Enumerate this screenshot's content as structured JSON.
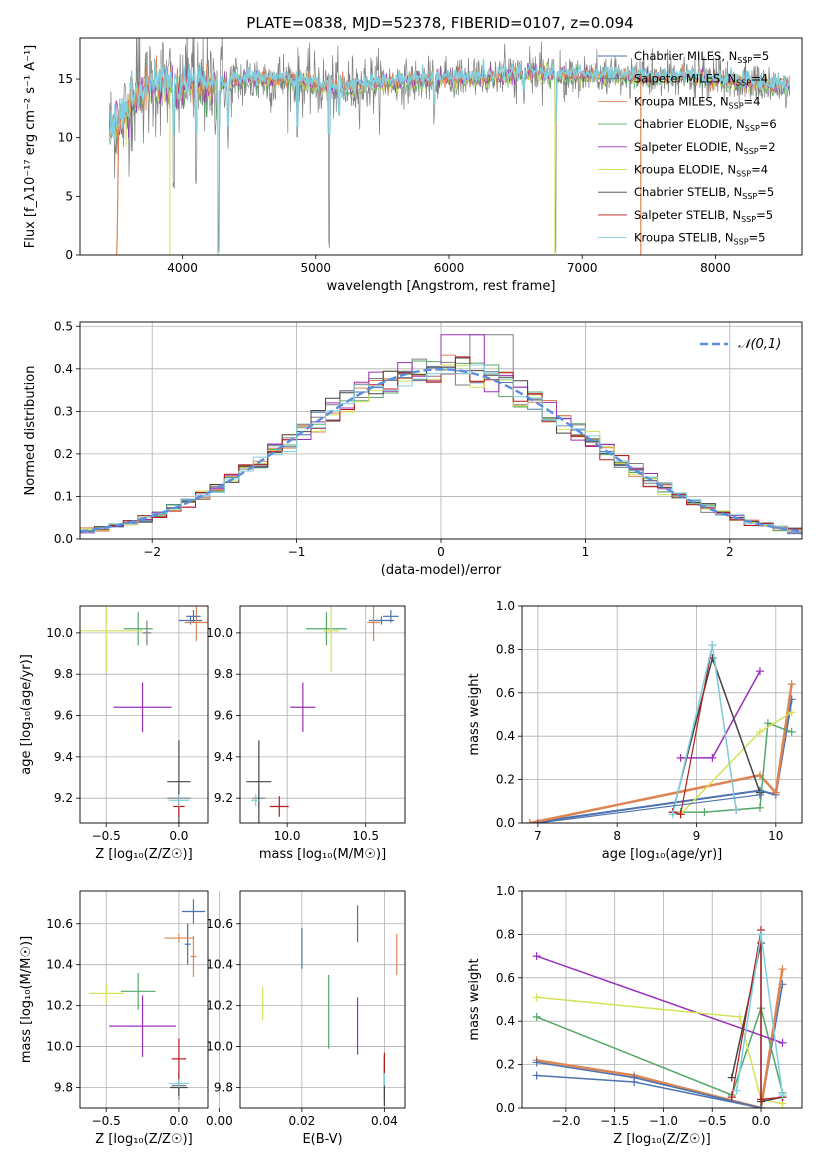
{
  "figure_title": "PLATE=0838, MJD=52378, FIBERID=0107, z=0.094",
  "model_colors": [
    "#4c72b0",
    "#7f7f7f",
    "#dd8452",
    "#55a868",
    "#9b30b8",
    "#d4e157",
    "#444444",
    "#b71c1c",
    "#80d0df"
  ],
  "chart_data": [
    {
      "id": "spectrum",
      "type": "line",
      "xlabel": "wavelength [Angstrom, rest frame]",
      "ylabel": "Flux [f_λ10⁻¹⁷ erg cm⁻² s⁻¹ A⁻¹]",
      "xlim": [
        3230,
        8650
      ],
      "ylim": [
        0,
        18.5
      ],
      "xticks": [
        4000,
        5000,
        6000,
        7000,
        8000
      ],
      "yticks": [
        0,
        5,
        10,
        15
      ],
      "grid": false,
      "legend_position": "right",
      "legend": [
        {
          "name": "Chabrier MILES, N",
          "sub": "SSP",
          "suffix": "=5"
        },
        {
          "name": "Salpeter MILES, N",
          "sub": "SSP",
          "suffix": "=4"
        },
        {
          "name": "Kroupa MILES, N",
          "sub": "SSP",
          "suffix": "=4"
        },
        {
          "name": "Chabrier ELODIE, N",
          "sub": "SSP",
          "suffix": "=6"
        },
        {
          "name": "Salpeter ELODIE, N",
          "sub": "SSP",
          "suffix": "=2"
        },
        {
          "name": "Kroupa ELODIE, N",
          "sub": "SSP",
          "suffix": "=4"
        },
        {
          "name": "Chabrier STELIB, N",
          "sub": "SSP",
          "suffix": "=5"
        },
        {
          "name": "Salpeter STELIB, N",
          "sub": "SSP",
          "suffix": "=5"
        },
        {
          "name": "Kroupa STELIB, N",
          "sub": "SSP",
          "suffix": "=5"
        }
      ],
      "continuum": [
        [
          3450,
          10.8
        ],
        [
          3550,
          11.5
        ],
        [
          3650,
          13.5
        ],
        [
          3750,
          14.2
        ],
        [
          3850,
          14.8
        ],
        [
          3950,
          14.2
        ],
        [
          4050,
          14.6
        ],
        [
          4200,
          14.3
        ],
        [
          4350,
          14.7
        ],
        [
          4500,
          15.0
        ],
        [
          4800,
          14.9
        ],
        [
          5000,
          14.5
        ],
        [
          5200,
          14.2
        ],
        [
          5400,
          14.6
        ],
        [
          5700,
          14.8
        ],
        [
          6000,
          15.0
        ],
        [
          6300,
          15.2
        ],
        [
          6600,
          15.5
        ],
        [
          6900,
          15.3
        ],
        [
          7200,
          15.3
        ],
        [
          7500,
          15.1
        ],
        [
          7800,
          15.2
        ],
        [
          8100,
          14.8
        ],
        [
          8500,
          14.4
        ]
      ],
      "absorption_features": [
        [
          3934,
          5.5
        ],
        [
          4102,
          6
        ],
        [
          4272,
          0
        ],
        [
          4340,
          9
        ],
        [
          4861,
          9
        ],
        [
          5100,
          0
        ],
        [
          5175,
          10
        ],
        [
          5890,
          11
        ],
        [
          6563,
          12
        ],
        [
          6800,
          0
        ]
      ]
    },
    {
      "id": "residual-histogram",
      "type": "line",
      "xlabel": "(data-model)/error",
      "ylabel": "Normed distribution",
      "xlim": [
        -2.5,
        2.5
      ],
      "ylim": [
        0,
        0.51
      ],
      "xticks": [
        -2,
        -1,
        0,
        1,
        2
      ],
      "yticks": [
        0.0,
        0.1,
        0.2,
        0.3,
        0.4,
        0.5
      ],
      "grid": true,
      "legend_position": "top-right",
      "legend": [
        "𝒩(0,1)"
      ],
      "bin_width": 0.1
    },
    {
      "id": "age-vs-Z",
      "type": "scatter",
      "xlabel": "Z [log₁₀(Z/Z☉)]",
      "ylabel": "age  [log₁₀(age/yr)]",
      "xlim": [
        -0.68,
        0.2
      ],
      "ylim": [
        9.08,
        10.13
      ],
      "xticks": [
        -0.5,
        0.0
      ],
      "yticks": [
        9.2,
        9.4,
        9.6,
        9.8,
        10.0
      ],
      "grid": true,
      "points": [
        {
          "x": 0.08,
          "y": 10.06,
          "xerr": 0.08,
          "yerr": 0.02,
          "c": 0
        },
        {
          "x": 0.0,
          "y": 9.2,
          "xerr": 0.08,
          "yerr": 0.04,
          "c": 1
        },
        {
          "x": 0.12,
          "y": 10.05,
          "xerr": 0.08,
          "yerr": 0.09,
          "c": 2
        },
        {
          "x": -0.28,
          "y": 10.02,
          "xerr": 0.1,
          "yerr": 0.08,
          "c": 3
        },
        {
          "x": -0.25,
          "y": 9.64,
          "xerr": 0.2,
          "yerr": 0.12,
          "c": 4
        },
        {
          "x": -0.5,
          "y": 10.01,
          "xerr": 0.25,
          "yerr": 0.2,
          "c": 5
        },
        {
          "x": 0.0,
          "y": 9.28,
          "xerr": 0.08,
          "yerr": 0.2,
          "c": 6
        },
        {
          "x": 0.0,
          "y": 9.16,
          "xerr": 0.04,
          "yerr": 0.05,
          "c": 7
        },
        {
          "x": 0.0,
          "y": 9.19,
          "xerr": 0.07,
          "yerr": 0.03,
          "c": 8
        },
        {
          "x": 0.1,
          "y": 10.08,
          "xerr": 0.05,
          "yerr": 0.03,
          "c": 0
        },
        {
          "x": -0.22,
          "y": 10.0,
          "xerr": 0.03,
          "yerr": 0.06,
          "c": 1
        }
      ]
    },
    {
      "id": "age-vs-mass",
      "type": "scatter",
      "xlabel": "mass [log₁₀(M/M☉)]",
      "ylabel": "",
      "xlim": [
        9.7,
        10.75
      ],
      "ylim": [
        9.08,
        10.13
      ],
      "xticks": [
        10.0,
        10.5
      ],
      "yticks": [
        9.2,
        9.4,
        9.6,
        9.8,
        10.0
      ],
      "grid": true,
      "points": [
        {
          "x": 10.6,
          "y": 10.06,
          "xerr": 0.08,
          "yerr": 0.02,
          "c": 0
        },
        {
          "x": 9.82,
          "y": 9.2,
          "xerr": 0.04,
          "yerr": 0.04,
          "c": 1
        },
        {
          "x": 10.55,
          "y": 10.05,
          "xerr": 0.04,
          "yerr": 0.09,
          "c": 2
        },
        {
          "x": 10.25,
          "y": 10.02,
          "xerr": 0.13,
          "yerr": 0.08,
          "c": 3
        },
        {
          "x": 10.1,
          "y": 9.64,
          "xerr": 0.08,
          "yerr": 0.12,
          "c": 4
        },
        {
          "x": 10.28,
          "y": 10.01,
          "xerr": 0.05,
          "yerr": 0.2,
          "c": 5
        },
        {
          "x": 9.82,
          "y": 9.28,
          "xerr": 0.08,
          "yerr": 0.2,
          "c": 6
        },
        {
          "x": 9.95,
          "y": 9.16,
          "xerr": 0.06,
          "yerr": 0.05,
          "c": 7
        },
        {
          "x": 9.8,
          "y": 9.19,
          "xerr": 0.03,
          "yerr": 0.03,
          "c": 8
        },
        {
          "x": 10.66,
          "y": 10.08,
          "xerr": 0.05,
          "yerr": 0.03,
          "c": 0
        }
      ]
    },
    {
      "id": "mass-weight-vs-age",
      "type": "line",
      "xlabel": "age  [log₁₀(age/yr)]",
      "ylabel": "mass weight",
      "xlim": [
        6.8,
        10.33
      ],
      "ylim": [
        0,
        1.0
      ],
      "xticks": [
        7,
        8,
        9,
        10
      ],
      "yticks": [
        0.0,
        0.2,
        0.4,
        0.6,
        0.8,
        1.0
      ],
      "grid": true,
      "series": [
        {
          "c": 0,
          "x": [
            6.9,
            9.8,
            10.0,
            10.2
          ],
          "y": [
            0.0,
            0.15,
            0.13,
            0.57
          ],
          "w": 2
        },
        {
          "c": 2,
          "x": [
            6.9,
            9.8,
            10.0,
            10.2
          ],
          "y": [
            0.0,
            0.22,
            0.14,
            0.64
          ],
          "w": 2.5
        },
        {
          "c": 3,
          "x": [
            8.8,
            9.1,
            9.8,
            9.9,
            10.2
          ],
          "y": [
            0.05,
            0.05,
            0.07,
            0.46,
            0.42
          ],
          "w": 1.5
        },
        {
          "c": 4,
          "x": [
            8.8,
            9.2,
            9.8
          ],
          "y": [
            0.3,
            0.3,
            0.7
          ],
          "w": 1.5
        },
        {
          "c": 5,
          "x": [
            8.8,
            9.8,
            10.2
          ],
          "y": [
            0.04,
            0.42,
            0.51
          ],
          "w": 1.5
        },
        {
          "c": 6,
          "x": [
            8.7,
            9.2,
            9.8
          ],
          "y": [
            0.05,
            0.76,
            0.14
          ],
          "w": 1.5
        },
        {
          "c": 7,
          "x": [
            8.7,
            8.8,
            9.2,
            9.5
          ],
          "y": [
            0.05,
            0.04,
            0.82,
            0.06
          ],
          "w": 1.2
        },
        {
          "c": 8,
          "x": [
            8.7,
            9.2,
            9.5
          ],
          "y": [
            0.04,
            0.82,
            0.06
          ],
          "w": 1.5
        },
        {
          "c": 0,
          "x": [
            7.0,
            9.8
          ],
          "y": [
            0.0,
            0.13
          ],
          "w": 1.2
        }
      ]
    },
    {
      "id": "mass-vs-Z",
      "type": "scatter",
      "xlabel": "Z [log₁₀(Z/Z☉)]",
      "ylabel": "mass [log₁₀(M/M☉)]",
      "xlim": [
        -0.68,
        0.2
      ],
      "ylim": [
        9.7,
        10.76
      ],
      "xticks": [
        -0.5,
        0.0
      ],
      "yticks": [
        9.8,
        10.0,
        10.2,
        10.4,
        10.6
      ],
      "grid": true,
      "points": [
        {
          "x": 0.06,
          "y": 10.5,
          "xerr": 0.02,
          "yerr": 0.1,
          "c": 0
        },
        {
          "x": 0.0,
          "y": 9.81,
          "xerr": 0.05,
          "yerr": 0.07,
          "c": 1
        },
        {
          "x": 0.0,
          "y": 10.53,
          "xerr": 0.1,
          "yerr": 0.02,
          "c": 2
        },
        {
          "x": -0.28,
          "y": 10.27,
          "xerr": 0.12,
          "yerr": 0.09,
          "c": 3
        },
        {
          "x": -0.25,
          "y": 10.1,
          "xerr": 0.23,
          "yerr": 0.15,
          "c": 4
        },
        {
          "x": -0.5,
          "y": 10.26,
          "xerr": 0.12,
          "yerr": 0.05,
          "c": 5
        },
        {
          "x": 0.0,
          "y": 9.8,
          "xerr": 0.06,
          "yerr": 0.04,
          "c": 6
        },
        {
          "x": 0.0,
          "y": 9.94,
          "xerr": 0.05,
          "yerr": 0.1,
          "c": 7
        },
        {
          "x": 0.0,
          "y": 9.82,
          "xerr": 0.07,
          "yerr": 0.02,
          "c": 8
        },
        {
          "x": 0.1,
          "y": 10.66,
          "xerr": 0.08,
          "yerr": 0.06,
          "c": 0
        },
        {
          "x": 0.1,
          "y": 10.44,
          "xerr": 0.02,
          "yerr": 0.1,
          "c": 2
        }
      ]
    },
    {
      "id": "mass-vs-ebv",
      "type": "scatter",
      "xlabel": "E(B-V)",
      "ylabel": "",
      "xlim": [
        0.005,
        0.045
      ],
      "ylim": [
        9.7,
        10.76
      ],
      "xticks": [
        0.0,
        0.02,
        0.04
      ],
      "yticks": [
        9.8,
        10.0,
        10.2,
        10.4,
        10.6
      ],
      "grid": true,
      "points": [
        {
          "x": 0.02,
          "y": 10.48,
          "yerr": 0.1,
          "c": 0
        },
        {
          "x": 0.04,
          "y": 9.81,
          "yerr": 0.07,
          "c": 1
        },
        {
          "x": 0.043,
          "y": 10.45,
          "yerr": 0.1,
          "c": 2
        },
        {
          "x": 0.0265,
          "y": 10.17,
          "yerr": 0.18,
          "c": 3
        },
        {
          "x": 0.0335,
          "y": 10.1,
          "yerr": 0.14,
          "c": 4
        },
        {
          "x": 0.0105,
          "y": 10.21,
          "yerr": 0.08,
          "c": 5
        },
        {
          "x": 0.04,
          "y": 9.83,
          "yerr": 0.12,
          "c": 6
        },
        {
          "x": 0.04,
          "y": 9.92,
          "yerr": 0.05,
          "c": 7
        },
        {
          "x": 0.04,
          "y": 9.84,
          "yerr": 0.03,
          "c": 8
        },
        {
          "x": 0.0335,
          "y": 10.6,
          "yerr": 0.09,
          "c": 0
        }
      ]
    },
    {
      "id": "mass-weight-vs-Z",
      "type": "line",
      "xlabel": "Z [log₁₀(Z/Z☉)]",
      "ylabel": "mass weight",
      "xlim": [
        -2.45,
        0.42
      ],
      "ylim": [
        0,
        1.0
      ],
      "xticks": [
        -2.0,
        -1.5,
        -1.0,
        -0.5,
        0.0
      ],
      "yticks": [
        0.0,
        0.2,
        0.4,
        0.6,
        0.8,
        1.0
      ],
      "grid": true,
      "series": [
        {
          "c": 0,
          "x": [
            -2.3,
            -1.3,
            0.0,
            0.22
          ],
          "y": [
            0.15,
            0.12,
            0.0,
            0.57
          ],
          "w": 1.5
        },
        {
          "c": 2,
          "x": [
            -2.3,
            -1.3,
            0.0,
            0.22
          ],
          "y": [
            0.22,
            0.15,
            0.0,
            0.64
          ],
          "w": 2.5
        },
        {
          "c": 0,
          "x": [
            -2.3,
            -1.3,
            0.0
          ],
          "y": [
            0.21,
            0.14,
            0.0
          ],
          "w": 1.5
        },
        {
          "c": 3,
          "x": [
            -2.3,
            -0.3,
            0.0,
            0.22
          ],
          "y": [
            0.42,
            0.06,
            0.46,
            0.07
          ],
          "w": 1.5
        },
        {
          "c": 4,
          "x": [
            -2.3,
            0.22
          ],
          "y": [
            0.7,
            0.3
          ],
          "w": 1.5
        },
        {
          "c": 5,
          "x": [
            -2.3,
            -0.22,
            0.0,
            0.22
          ],
          "y": [
            0.51,
            0.42,
            0.04,
            0.02
          ],
          "w": 1.5
        },
        {
          "c": 6,
          "x": [
            -0.3,
            0.0,
            0.0,
            0.22
          ],
          "y": [
            0.14,
            0.76,
            0.03,
            0.05
          ],
          "w": 1.5
        },
        {
          "c": 7,
          "x": [
            -0.3,
            0.0,
            0.0,
            0.22
          ],
          "y": [
            0.05,
            0.82,
            0.04,
            0.05
          ],
          "w": 1.2
        },
        {
          "c": 8,
          "x": [
            -0.25,
            0.0,
            0.22
          ],
          "y": [
            0.08,
            0.8,
            0.06
          ],
          "w": 1.5
        }
      ]
    }
  ]
}
